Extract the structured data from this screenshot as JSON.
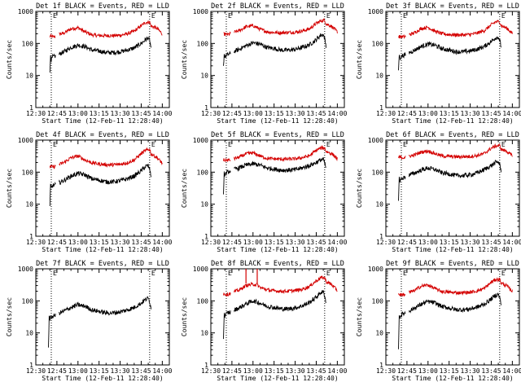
{
  "page": {
    "background": "#ffffff",
    "ink": "#000000"
  },
  "colors": {
    "events": "#000000",
    "lld": "#d40000"
  },
  "xaxis": {
    "tick_labels": [
      "12:30",
      "12:45",
      "13:00",
      "13:15",
      "13:30",
      "13:45",
      "14:00"
    ],
    "tick_minutes": [
      0,
      15,
      30,
      45,
      60,
      75,
      90
    ],
    "range_minutes": [
      0,
      95
    ],
    "title": "Start Time (12-Feb-11 12:28:40)"
  },
  "yaxis": {
    "scale": "log",
    "range": [
      1,
      1000
    ],
    "tick_labels": [
      "1",
      "10",
      "100",
      "1000"
    ],
    "tick_values": [
      1,
      10,
      100,
      1000
    ],
    "title": "Counts/sec"
  },
  "markers": {
    "text": "E",
    "dotted_at_minutes": [
      11,
      81
    ]
  },
  "chart_data": [
    {
      "type": "line",
      "title": "Det 1f BLACK = Events, RED = LLD",
      "gap_at": 14,
      "series": [
        {
          "x": [
            10,
            12,
            14,
            16,
            20,
            25,
            30,
            35,
            40,
            45,
            50,
            55,
            60,
            65,
            70,
            75,
            78,
            81,
            82,
            86,
            90
          ],
          "values": [
            170,
            160,
            165,
            190,
            210,
            285,
            310,
            230,
            185,
            175,
            175,
            175,
            180,
            200,
            240,
            360,
            450,
            470,
            350,
            300,
            200
          ]
        },
        {
          "x": [
            10,
            10.5,
            11,
            12,
            14,
            16,
            20,
            25,
            30,
            35,
            40,
            45,
            50,
            55,
            60,
            65,
            70,
            75,
            78,
            80,
            81,
            82
          ],
          "values": [
            11,
            45,
            30,
            38,
            40,
            45,
            55,
            75,
            88,
            80,
            62,
            58,
            52,
            52,
            55,
            62,
            72,
            100,
            130,
            150,
            120,
            75
          ]
        }
      ]
    },
    {
      "type": "line",
      "title": "Det 2f BLACK = Events, RED = LLD",
      "gap_at": 14,
      "series": [
        {
          "x": [
            9,
            12,
            14,
            16,
            20,
            25,
            30,
            35,
            40,
            45,
            50,
            55,
            60,
            65,
            70,
            75,
            78,
            81,
            82,
            86,
            90
          ],
          "values": [
            195,
            190,
            200,
            220,
            250,
            330,
            360,
            280,
            230,
            220,
            215,
            220,
            225,
            245,
            280,
            420,
            500,
            530,
            410,
            340,
            230
          ]
        },
        {
          "x": [
            9,
            9.5,
            10,
            12,
            14,
            16,
            20,
            25,
            30,
            35,
            40,
            45,
            50,
            55,
            60,
            65,
            70,
            75,
            78,
            80,
            81,
            82
          ],
          "values": [
            20,
            45,
            38,
            45,
            48,
            55,
            65,
            85,
            105,
            95,
            75,
            70,
            62,
            62,
            65,
            75,
            90,
            130,
            180,
            190,
            140,
            85
          ]
        }
      ]
    },
    {
      "type": "line",
      "title": "Det 3f BLACK = Events, RED = LLD",
      "gap_at": 14,
      "series": [
        {
          "x": [
            9,
            12,
            14,
            16,
            20,
            25,
            30,
            35,
            40,
            45,
            50,
            55,
            60,
            65,
            70,
            75,
            78,
            81,
            82,
            86,
            90
          ],
          "values": [
            165,
            160,
            165,
            185,
            210,
            290,
            320,
            240,
            200,
            190,
            185,
            185,
            190,
            210,
            250,
            380,
            470,
            480,
            360,
            300,
            205
          ]
        },
        {
          "x": [
            9,
            9.5,
            10,
            12,
            14,
            16,
            20,
            25,
            30,
            35,
            40,
            45,
            50,
            55,
            60,
            65,
            70,
            75,
            78,
            80,
            81,
            82
          ],
          "values": [
            15,
            45,
            35,
            42,
            44,
            50,
            60,
            80,
            95,
            88,
            68,
            62,
            55,
            55,
            58,
            66,
            80,
            115,
            150,
            160,
            125,
            80
          ]
        }
      ]
    },
    {
      "type": "line",
      "title": "Det 4f BLACK = Events, RED = LLD",
      "gap_at": 14,
      "series": [
        {
          "x": [
            10,
            12,
            14,
            16,
            20,
            25,
            30,
            35,
            40,
            45,
            50,
            55,
            60,
            65,
            70,
            75,
            78,
            81,
            82,
            86,
            90
          ],
          "values": [
            150,
            145,
            150,
            170,
            200,
            280,
            320,
            240,
            195,
            180,
            170,
            170,
            175,
            195,
            240,
            380,
            470,
            520,
            370,
            290,
            190
          ]
        },
        {
          "x": [
            10,
            10.5,
            11,
            12,
            14,
            16,
            20,
            25,
            30,
            35,
            40,
            45,
            50,
            55,
            60,
            65,
            70,
            75,
            78,
            80,
            81,
            82
          ],
          "values": [
            8,
            40,
            32,
            38,
            40,
            45,
            55,
            75,
            92,
            82,
            62,
            56,
            50,
            50,
            54,
            62,
            75,
            110,
            150,
            160,
            120,
            75
          ]
        }
      ]
    },
    {
      "type": "line",
      "title": "Det 5f BLACK = Events, RED = LLD",
      "gap_at": 14,
      "series": [
        {
          "x": [
            9,
            12,
            14,
            16,
            20,
            25,
            30,
            35,
            40,
            45,
            50,
            55,
            60,
            65,
            70,
            75,
            78,
            81,
            82,
            86,
            90
          ],
          "values": [
            240,
            235,
            240,
            260,
            290,
            370,
            400,
            320,
            270,
            260,
            255,
            255,
            260,
            285,
            320,
            480,
            560,
            570,
            440,
            380,
            260
          ]
        },
        {
          "x": [
            9,
            9.5,
            10,
            12,
            14,
            16,
            20,
            25,
            30,
            35,
            40,
            45,
            50,
            55,
            60,
            65,
            70,
            75,
            78,
            80,
            81,
            82
          ],
          "values": [
            18,
            90,
            85,
            100,
            110,
            120,
            135,
            165,
            180,
            165,
            135,
            125,
            115,
            115,
            120,
            135,
            160,
            200,
            240,
            250,
            195,
            130
          ]
        }
      ]
    },
    {
      "type": "line",
      "title": "Det 6f BLACK = Events, RED = LLD",
      "gap_at": 14,
      "series": [
        {
          "x": [
            9,
            12,
            14,
            16,
            20,
            25,
            30,
            35,
            40,
            45,
            50,
            55,
            60,
            65,
            70,
            75,
            78,
            81,
            82,
            86,
            90
          ],
          "values": [
            290,
            285,
            290,
            310,
            340,
            420,
            460,
            380,
            320,
            310,
            300,
            305,
            310,
            330,
            380,
            560,
            650,
            680,
            520,
            450,
            320
          ]
        },
        {
          "x": [
            9,
            9.5,
            10,
            12,
            14,
            16,
            20,
            25,
            30,
            35,
            40,
            45,
            50,
            55,
            60,
            65,
            70,
            75,
            78,
            80,
            81,
            82
          ],
          "values": [
            15,
            65,
            55,
            65,
            70,
            80,
            92,
            115,
            135,
            120,
            95,
            88,
            78,
            78,
            82,
            95,
            120,
            160,
            200,
            210,
            170,
            110
          ]
        }
      ]
    },
    {
      "type": "line",
      "title": "Det 7f BLACK = Events, RED = LLD",
      "gap_at": 14,
      "series": [
        {
          "x": [],
          "values": []
        },
        {
          "x": [
            9,
            9.5,
            10,
            12,
            14,
            16,
            20,
            25,
            30,
            35,
            40,
            45,
            50,
            55,
            60,
            65,
            70,
            75,
            78,
            80,
            81,
            82
          ],
          "values": [
            4,
            32,
            28,
            33,
            35,
            40,
            48,
            62,
            75,
            68,
            52,
            47,
            42,
            42,
            45,
            52,
            62,
            85,
            110,
            120,
            95,
            60
          ]
        }
      ]
    },
    {
      "type": "line",
      "title": "Det 8f BLACK = Events, RED = LLD",
      "gap_at": 14,
      "spikes": [
        25,
        33
      ],
      "series": [
        {
          "x": [
            9,
            12,
            14,
            16,
            20,
            25,
            30,
            33,
            35,
            40,
            45,
            50,
            55,
            60,
            65,
            70,
            75,
            78,
            81,
            82,
            86,
            90
          ],
          "values": [
            165,
            160,
            170,
            190,
            215,
            300,
            330,
            320,
            260,
            220,
            205,
            200,
            200,
            210,
            230,
            280,
            420,
            520,
            530,
            400,
            320,
            210
          ]
        },
        {
          "x": [
            9,
            9.5,
            10,
            12,
            14,
            16,
            20,
            25,
            30,
            35,
            40,
            45,
            50,
            55,
            60,
            65,
            70,
            75,
            78,
            80,
            81,
            82
          ],
          "values": [
            7,
            40,
            35,
            42,
            44,
            50,
            60,
            80,
            100,
            85,
            68,
            62,
            56,
            56,
            60,
            70,
            88,
            130,
            180,
            190,
            145,
            90
          ]
        }
      ]
    },
    {
      "type": "line",
      "title": "Det 9f BLACK = Events, RED = LLD",
      "gap_at": 14,
      "series": [
        {
          "x": [
            9,
            12,
            14,
            16,
            20,
            25,
            30,
            35,
            40,
            45,
            50,
            55,
            60,
            65,
            70,
            75,
            78,
            81,
            82,
            86,
            90
          ],
          "values": [
            160,
            155,
            160,
            180,
            205,
            285,
            315,
            240,
            195,
            185,
            180,
            180,
            185,
            205,
            245,
            380,
            460,
            470,
            360,
            295,
            200
          ]
        },
        {
          "x": [
            9,
            9.5,
            10,
            12,
            14,
            16,
            20,
            25,
            30,
            35,
            40,
            45,
            50,
            55,
            60,
            65,
            70,
            75,
            78,
            80,
            81,
            82
          ],
          "values": [
            3,
            38,
            32,
            40,
            42,
            48,
            58,
            78,
            95,
            86,
            66,
            60,
            53,
            53,
            56,
            64,
            78,
            115,
            150,
            160,
            125,
            78
          ]
        }
      ]
    }
  ]
}
